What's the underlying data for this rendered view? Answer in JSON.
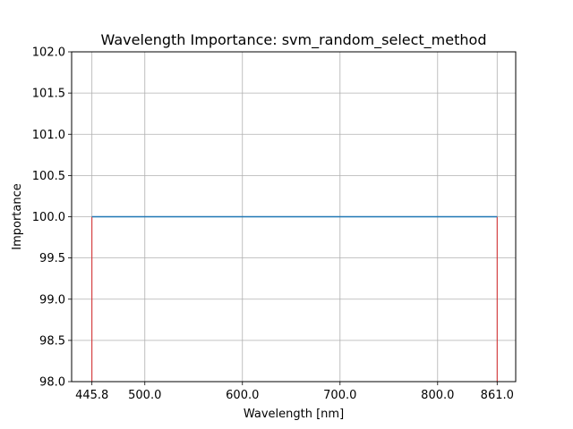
{
  "chart_data": {
    "type": "line",
    "title": "Wavelength Importance: svm_random_select_method",
    "xlabel": "Wavelength [nm]",
    "ylabel": "Importance",
    "xlim": [
      425,
      880
    ],
    "ylim": [
      98.0,
      102.0
    ],
    "x_ticks": [
      445.8,
      500.0,
      600.0,
      700.0,
      800.0,
      861.0
    ],
    "x_tick_labels": [
      "445.8",
      "500.0",
      "600.0",
      "700.0",
      "800.0",
      "861.0"
    ],
    "y_ticks": [
      98.0,
      98.5,
      99.0,
      99.5,
      100.0,
      100.5,
      101.0,
      101.5,
      102.0
    ],
    "y_tick_labels": [
      "98.0",
      "98.5",
      "99.0",
      "99.5",
      "100.0",
      "100.5",
      "101.0",
      "101.5",
      "102.0"
    ],
    "grid": true,
    "series": [
      {
        "type": "line",
        "color": "#1f77b4",
        "x": [
          445.8,
          861.0
        ],
        "y": [
          100.0,
          100.0
        ]
      }
    ],
    "vlines": [
      {
        "x": 445.8,
        "ymin": 98.0,
        "ymax": 100.0,
        "color": "#d62728"
      },
      {
        "x": 861.0,
        "ymin": 98.0,
        "ymax": 100.0,
        "color": "#d62728"
      }
    ]
  }
}
